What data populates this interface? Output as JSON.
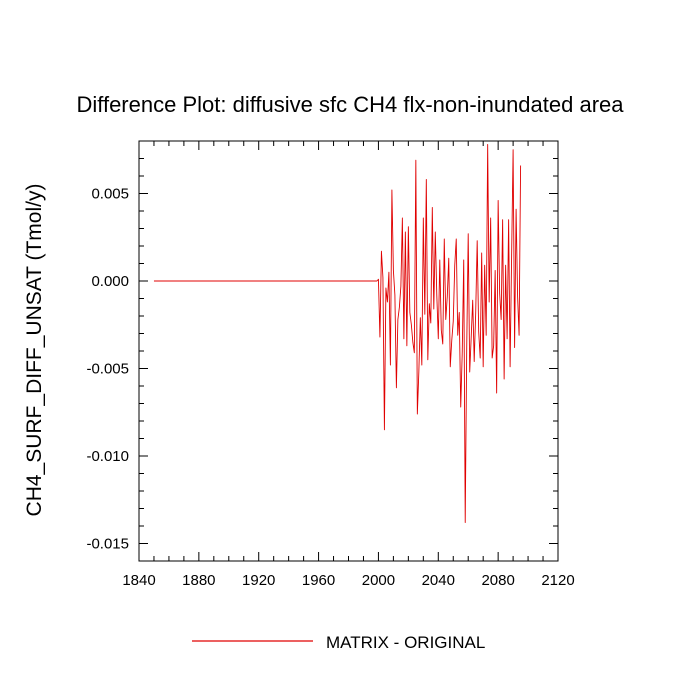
{
  "chart_data": {
    "type": "line",
    "title": "Difference Plot: diffusive sfc CH4 flx-non-inundated area",
    "xlabel": "",
    "ylabel": "CH4_SURF_DIFF_UNSAT  (Tmol/y)",
    "xlim": [
      1840,
      2120
    ],
    "ylim": [
      -0.016,
      0.008
    ],
    "xticks": [
      1840,
      1880,
      1920,
      1960,
      2000,
      2040,
      2080,
      2120
    ],
    "xtick_labels": [
      "1840",
      "1880",
      "1920",
      "1960",
      "2000",
      "2040",
      "2080",
      "2120"
    ],
    "yticks": [
      0.005,
      0.0,
      -0.005,
      -0.01,
      -0.015
    ],
    "ytick_labels": [
      "0.005",
      "0.000",
      "-0.005",
      "-0.010",
      "-0.015"
    ],
    "grid": false,
    "legend_position": "bottom-center",
    "series": [
      {
        "name": "MATRIX - ORIGINAL",
        "color": "#e00000",
        "x_start": 1850,
        "x_step": 1,
        "values": [
          0,
          0,
          0,
          0,
          0,
          0,
          0,
          0,
          0,
          0,
          0,
          0,
          0,
          0,
          0,
          0,
          0,
          0,
          0,
          0,
          0,
          0,
          0,
          0,
          0,
          0,
          0,
          0,
          0,
          0,
          0,
          0,
          0,
          0,
          0,
          0,
          0,
          0,
          0,
          0,
          0,
          0,
          0,
          0,
          0,
          0,
          0,
          0,
          0,
          0,
          0,
          0,
          0,
          0,
          0,
          0,
          0,
          0,
          0,
          0,
          0,
          0,
          0,
          0,
          0,
          0,
          0,
          0,
          0,
          0,
          0,
          0,
          0,
          0,
          0,
          0,
          0,
          0,
          0,
          0,
          0,
          0,
          0,
          0,
          0,
          0,
          0,
          0,
          0,
          0,
          0,
          0,
          0,
          0,
          0,
          0,
          0,
          0,
          0,
          0,
          0,
          0,
          0,
          0,
          0,
          0,
          0,
          0,
          0,
          0,
          0,
          0,
          0,
          0,
          0,
          0,
          0,
          0,
          0,
          0,
          0,
          0,
          0,
          0,
          0,
          0,
          0,
          0,
          0,
          0,
          0,
          0,
          0,
          0,
          0,
          0,
          0,
          0,
          0,
          0,
          0,
          0,
          0,
          0,
          0,
          0,
          0,
          0,
          0,
          0,
          0.0001,
          -0.0032,
          0.0017,
          0.0002,
          -0.0085,
          -0.0004,
          -0.0012,
          0.0005,
          -0.0048,
          0.0052,
          0.0006,
          -0.0008,
          -0.0061,
          -0.0022,
          -0.0015,
          -0.0003,
          0.0036,
          -0.0033,
          0.0028,
          -0.0037,
          0.0031,
          -0.0018,
          -0.0025,
          -0.0035,
          -0.0041,
          0.0069,
          -0.0076,
          -0.0052,
          -0.0021,
          -0.0048,
          0.0036,
          -0.0019,
          0.0058,
          -0.0045,
          -0.0013,
          -0.0024,
          0.0042,
          -0.0016,
          0.0028,
          -0.0008,
          -0.0033,
          0.0012,
          -0.0028,
          -0.0036,
          0.0024,
          -0.0022,
          -0.0009,
          0.0013,
          -0.0049,
          -0.0034,
          -0.0023,
          0.0009,
          0.0024,
          -0.0031,
          -0.0018,
          -0.0072,
          -0.0041,
          0.0012,
          -0.0138,
          -0.0038,
          0.0027,
          -0.0052,
          -0.0032,
          -0.0011,
          -0.0046,
          -0.0018,
          0.0023,
          -0.0029,
          -0.0044,
          0.0016,
          -0.0049,
          0.0009,
          -0.0031,
          0.0078,
          -0.0012,
          0.0036,
          -0.0044,
          -0.0037,
          0.0006,
          -0.0064,
          0.0046,
          -0.0007,
          -0.0022,
          0.0035,
          -0.0056,
          0.0009,
          -0.0033,
          0.0035,
          -0.0049,
          0.0014,
          0.0075,
          -0.0038,
          0.0041,
          -0.0009,
          -0.0031,
          0.0066
        ]
      }
    ]
  }
}
